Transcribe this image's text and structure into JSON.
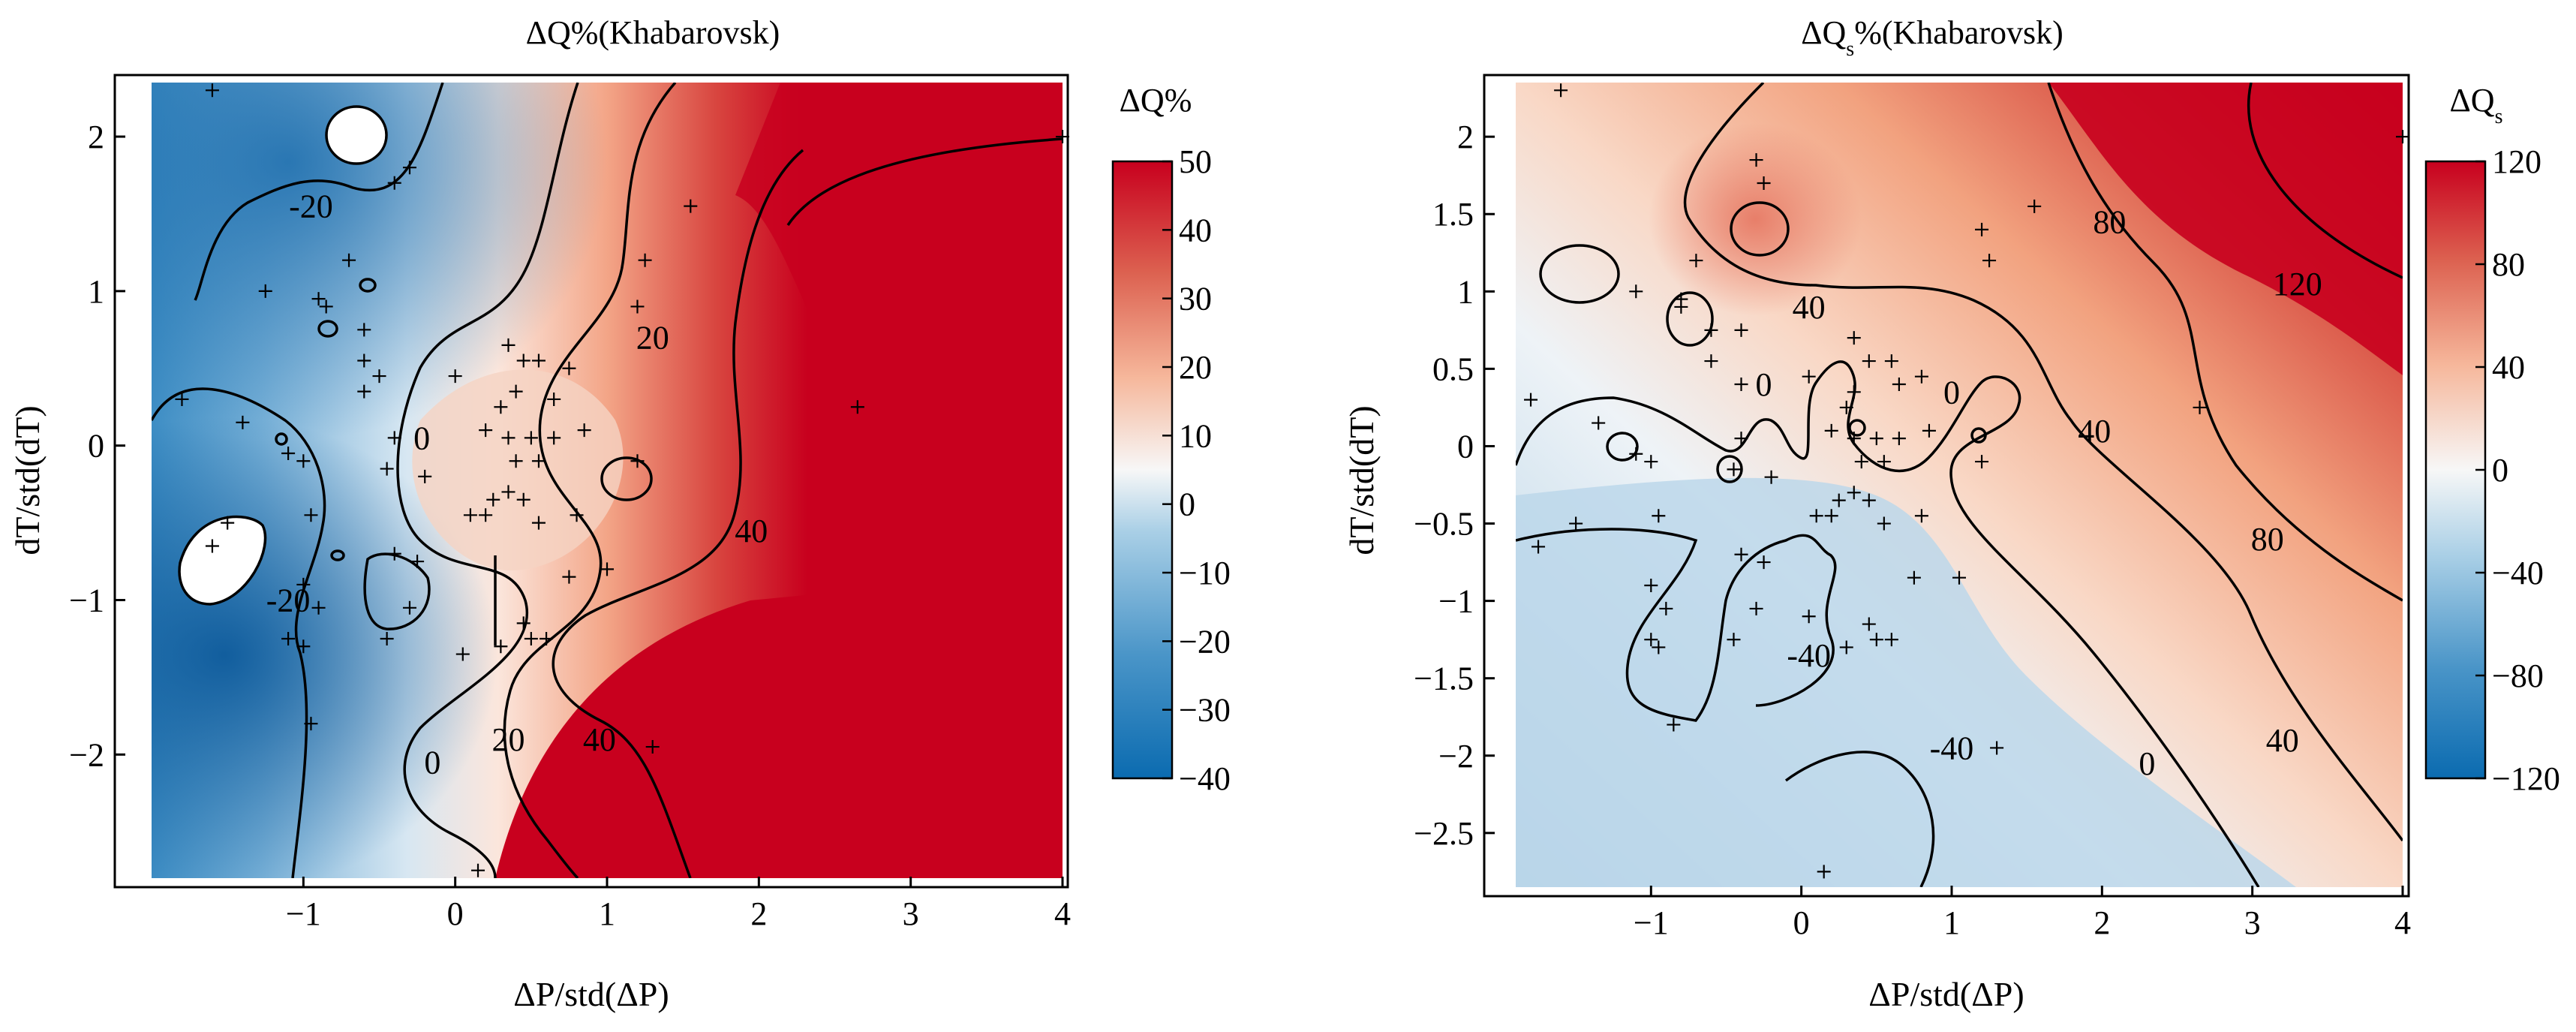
{
  "chart_data": [
    {
      "type": "heatmap",
      "title_main": "ΔQ%",
      "title_sub": "",
      "title_tail": "(Khabarovsk)",
      "xlabel": "ΔP/std(ΔP)",
      "ylabel": "dT/std(dT)",
      "xlim": [
        -2.0,
        4.0
      ],
      "ylim": [
        -2.8,
        2.35
      ],
      "xticks": [
        -1,
        0,
        1,
        2,
        3,
        4
      ],
      "xtick_labels": [
        "−1",
        "0",
        "1",
        "2",
        "3",
        "4"
      ],
      "yticks": [
        -2,
        -1,
        0,
        1,
        2
      ],
      "ytick_labels": [
        "−2",
        "−1",
        "0",
        "1",
        "2"
      ],
      "colorbar": {
        "label_main": "ΔQ%",
        "label_sub": "",
        "min": -40,
        "max": 50,
        "ticks": [
          50,
          40,
          30,
          20,
          10,
          0,
          -10,
          -20,
          -30,
          -40
        ],
        "tick_labels": [
          "50",
          "40",
          "30",
          "20",
          "10",
          "0",
          "−10",
          "−20",
          "−30",
          "−40"
        ],
        "colors": [
          "#053061",
          "#2166ac",
          "#4393c3",
          "#92c5de",
          "#d1e5f0",
          "#f7f7f7",
          "#fddbc7",
          "#f4a582",
          "#d6604d",
          "#b2182b",
          "#c8001e"
        ]
      },
      "contour_labels": [
        {
          "text": "-20",
          "x": -0.95,
          "y": 1.55
        },
        {
          "text": "0",
          "x": -0.22,
          "y": 0.05
        },
        {
          "text": "20",
          "x": 1.3,
          "y": 0.7
        },
        {
          "text": "40",
          "x": 1.95,
          "y": -0.55
        },
        {
          "text": "-20",
          "x": -1.1,
          "y": -1.0
        },
        {
          "text": "0",
          "x": -0.15,
          "y": -2.05
        },
        {
          "text": "20",
          "x": 0.35,
          "y": -1.9
        },
        {
          "text": "40",
          "x": 0.95,
          "y": -1.9
        }
      ],
      "points": [
        [
          -1.6,
          2.3
        ],
        [
          -0.3,
          1.8
        ],
        [
          -0.4,
          1.7
        ],
        [
          1.55,
          1.55
        ],
        [
          1.25,
          1.2
        ],
        [
          -0.7,
          1.2
        ],
        [
          -1.25,
          1.0
        ],
        [
          -0.9,
          0.95
        ],
        [
          -0.85,
          0.9
        ],
        [
          -0.6,
          0.75
        ],
        [
          -0.6,
          0.55
        ],
        [
          -0.5,
          0.45
        ],
        [
          -0.6,
          0.35
        ],
        [
          0.35,
          0.65
        ],
        [
          0.45,
          0.55
        ],
        [
          0.55,
          0.55
        ],
        [
          0.75,
          0.5
        ],
        [
          0.4,
          0.35
        ],
        [
          0.65,
          0.3
        ],
        [
          1.2,
          0.9
        ],
        [
          0.3,
          0.25
        ],
        [
          0.0,
          0.45
        ],
        [
          -1.8,
          0.3
        ],
        [
          -1.4,
          0.15
        ],
        [
          -1.1,
          -0.05
        ],
        [
          -1.0,
          -0.1
        ],
        [
          0.2,
          0.1
        ],
        [
          0.35,
          0.05
        ],
        [
          0.5,
          0.05
        ],
        [
          0.65,
          0.05
        ],
        [
          0.85,
          0.1
        ],
        [
          0.4,
          -0.1
        ],
        [
          0.55,
          -0.1
        ],
        [
          0.35,
          -0.3
        ],
        [
          0.45,
          -0.35
        ],
        [
          0.25,
          -0.35
        ],
        [
          -0.4,
          0.05
        ],
        [
          -0.45,
          -0.15
        ],
        [
          -0.2,
          -0.2
        ],
        [
          0.1,
          -0.45
        ],
        [
          0.2,
          -0.45
        ],
        [
          0.55,
          -0.5
        ],
        [
          0.8,
          -0.45
        ],
        [
          -0.95,
          -0.45
        ],
        [
          -0.4,
          -0.7
        ],
        [
          -0.25,
          -0.75
        ],
        [
          0.75,
          -0.85
        ],
        [
          1.0,
          -0.8
        ],
        [
          1.2,
          -0.1
        ],
        [
          -1.6,
          -0.65
        ],
        [
          -1.5,
          -0.5
        ],
        [
          -1.0,
          -0.9
        ],
        [
          -0.9,
          -1.05
        ],
        [
          -1.1,
          -1.25
        ],
        [
          -1.0,
          -1.3
        ],
        [
          -0.45,
          -1.25
        ],
        [
          -0.3,
          -1.05
        ],
        [
          0.05,
          -1.35
        ],
        [
          0.3,
          -1.3
        ],
        [
          0.5,
          -1.25
        ],
        [
          0.6,
          -1.25
        ],
        [
          0.45,
          -1.15
        ],
        [
          -0.95,
          -1.8
        ],
        [
          1.3,
          -1.95
        ],
        [
          0.15,
          -2.75
        ],
        [
          2.65,
          0.25
        ],
        [
          4.0,
          2.0
        ]
      ]
    },
    {
      "type": "heatmap",
      "title_main": "ΔQ",
      "title_sub": "s",
      "title_tail": "%(Khabarovsk)",
      "xlabel": "ΔP/std(ΔP)",
      "ylabel": "dT/std(dT)",
      "xlim": [
        -1.9,
        4.0
      ],
      "ylim": [
        -2.85,
        2.35
      ],
      "xticks": [
        -1,
        0,
        1,
        2,
        3,
        4
      ],
      "xtick_labels": [
        "−1",
        "0",
        "1",
        "2",
        "3",
        "4"
      ],
      "yticks": [
        -2.5,
        -2,
        -1.5,
        -1,
        -0.5,
        0,
        0.5,
        1,
        1.5,
        2
      ],
      "ytick_labels": [
        "−2.5",
        "−2",
        "−1.5",
        "−1",
        "−0.5",
        "0",
        "0.5",
        "1",
        "1.5",
        "2"
      ],
      "colorbar": {
        "label_main": "ΔQ",
        "label_sub": "s",
        "min": -120,
        "max": 120,
        "ticks": [
          120,
          80,
          40,
          0,
          -40,
          -80,
          -120
        ],
        "tick_labels": [
          "120",
          "80",
          "40",
          "0",
          "−40",
          "−80",
          "−120"
        ],
        "colors": [
          "#053061",
          "#2166ac",
          "#4393c3",
          "#92c5de",
          "#d1e5f0",
          "#f7f7f7",
          "#fddbc7",
          "#f4a582",
          "#d6604d",
          "#b2182b",
          "#c8001e"
        ]
      },
      "contour_labels": [
        {
          "text": "120",
          "x": 3.3,
          "y": 1.05
        },
        {
          "text": "80",
          "x": 2.05,
          "y": 1.45
        },
        {
          "text": "40",
          "x": 0.05,
          "y": 0.9
        },
        {
          "text": "0",
          "x": -0.25,
          "y": 0.4
        },
        {
          "text": "0",
          "x": 1.0,
          "y": 0.35
        },
        {
          "text": "40",
          "x": 1.95,
          "y": 0.1
        },
        {
          "text": "80",
          "x": 3.1,
          "y": -0.6
        },
        {
          "text": "40",
          "x": 3.2,
          "y": -1.9
        },
        {
          "text": "0",
          "x": 2.3,
          "y": -2.05
        },
        {
          "text": "-40",
          "x": 0.05,
          "y": -1.35
        },
        {
          "text": "-40",
          "x": 1.0,
          "y": -1.95
        }
      ],
      "points": [
        [
          -1.6,
          2.3
        ],
        [
          -0.3,
          1.85
        ],
        [
          -0.25,
          1.7
        ],
        [
          1.55,
          1.55
        ],
        [
          1.25,
          1.2
        ],
        [
          -0.7,
          1.2
        ],
        [
          -1.1,
          1.0
        ],
        [
          -0.8,
          0.95
        ],
        [
          -0.8,
          0.9
        ],
        [
          -0.6,
          0.75
        ],
        [
          -0.6,
          0.55
        ],
        [
          -0.4,
          0.75
        ],
        [
          -0.4,
          0.4
        ],
        [
          0.35,
          0.7
        ],
        [
          0.45,
          0.55
        ],
        [
          0.6,
          0.55
        ],
        [
          0.8,
          0.45
        ],
        [
          0.35,
          0.35
        ],
        [
          0.65,
          0.4
        ],
        [
          1.2,
          1.4
        ],
        [
          0.3,
          0.25
        ],
        [
          0.05,
          0.45
        ],
        [
          -1.8,
          0.3
        ],
        [
          -1.35,
          0.15
        ],
        [
          -1.1,
          -0.05
        ],
        [
          -1.0,
          -0.1
        ],
        [
          0.2,
          0.1
        ],
        [
          0.35,
          0.05
        ],
        [
          0.5,
          0.05
        ],
        [
          0.65,
          0.05
        ],
        [
          0.85,
          0.1
        ],
        [
          0.4,
          -0.1
        ],
        [
          0.55,
          -0.1
        ],
        [
          0.35,
          -0.3
        ],
        [
          0.45,
          -0.35
        ],
        [
          0.25,
          -0.35
        ],
        [
          -0.4,
          0.05
        ],
        [
          -0.45,
          -0.15
        ],
        [
          -0.2,
          -0.2
        ],
        [
          0.1,
          -0.45
        ],
        [
          0.2,
          -0.45
        ],
        [
          0.55,
          -0.5
        ],
        [
          0.8,
          -0.45
        ],
        [
          -0.95,
          -0.45
        ],
        [
          -0.4,
          -0.7
        ],
        [
          -0.25,
          -0.75
        ],
        [
          0.75,
          -0.85
        ],
        [
          1.05,
          -0.85
        ],
        [
          1.2,
          -0.1
        ],
        [
          -1.75,
          -0.65
        ],
        [
          -1.5,
          -0.5
        ],
        [
          -1.0,
          -0.9
        ],
        [
          -0.9,
          -1.05
        ],
        [
          -1.0,
          -1.25
        ],
        [
          -0.95,
          -1.3
        ],
        [
          -0.45,
          -1.25
        ],
        [
          -0.3,
          -1.05
        ],
        [
          0.05,
          -1.1
        ],
        [
          0.3,
          -1.3
        ],
        [
          0.5,
          -1.25
        ],
        [
          0.6,
          -1.25
        ],
        [
          0.45,
          -1.15
        ],
        [
          -0.85,
          -1.8
        ],
        [
          1.3,
          -1.95
        ],
        [
          0.15,
          -2.75
        ],
        [
          2.65,
          0.25
        ],
        [
          4.0,
          2.0
        ]
      ]
    }
  ]
}
